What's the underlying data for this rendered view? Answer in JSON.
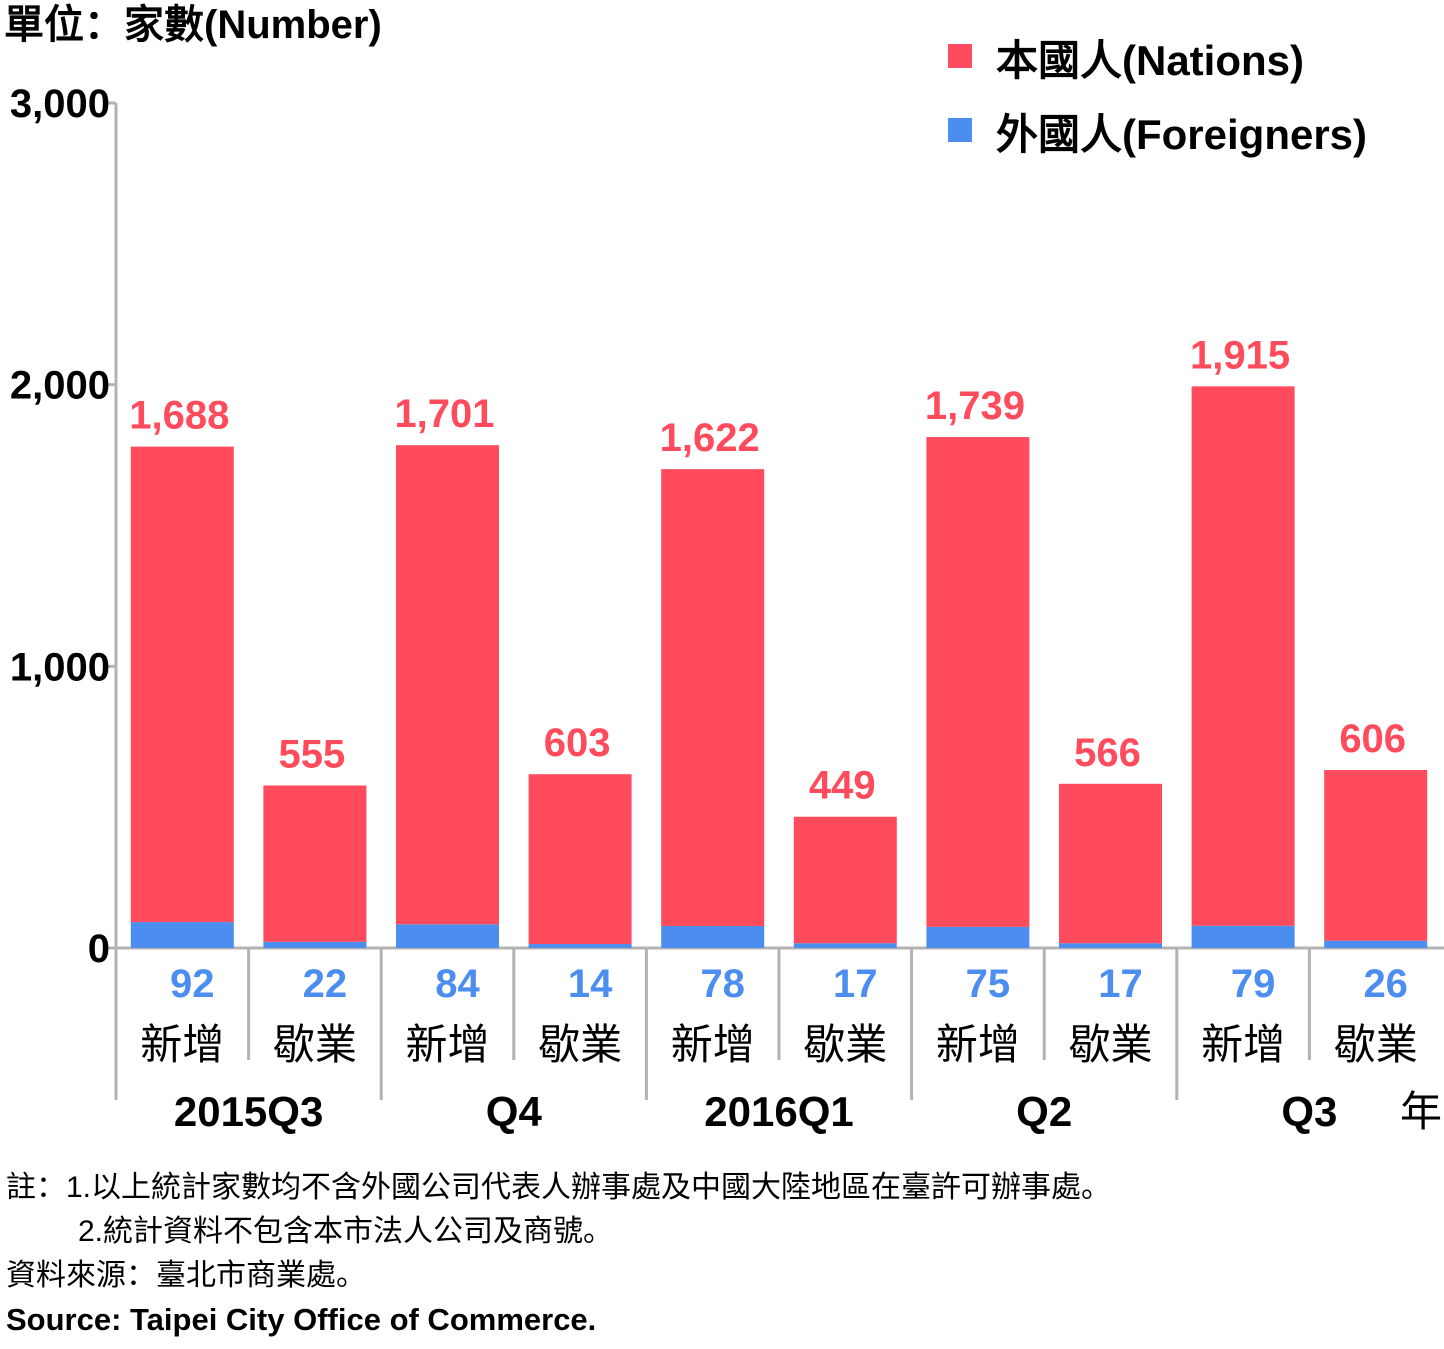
{
  "chart_data": {
    "type": "bar",
    "stacked": true,
    "unit_label": "單位：家數(Number)",
    "yticks": [
      "0",
      "1,000",
      "2,000",
      "3,000"
    ],
    "ylim": [
      0,
      3000
    ],
    "grid": false,
    "legend_position": "top-right",
    "series": [
      {
        "name": "本國人(Nations)",
        "color": "#ff4b5c",
        "values": [
          1688,
          555,
          1701,
          603,
          1622,
          449,
          1739,
          566,
          1915,
          606
        ],
        "labels": [
          "1,688",
          "555",
          "1,701",
          "603",
          "1,622",
          "449",
          "1,739",
          "566",
          "1,915",
          "606"
        ]
      },
      {
        "name": "外國人(Foreigners)",
        "color": "#4c8ef0",
        "values": [
          92,
          22,
          84,
          14,
          78,
          17,
          75,
          17,
          79,
          26
        ],
        "labels": [
          "92",
          "22",
          "84",
          "14",
          "78",
          "17",
          "75",
          "17",
          "79",
          "26"
        ]
      }
    ],
    "categories": [
      "新增",
      "歇業",
      "新增",
      "歇業",
      "新增",
      "歇業",
      "新增",
      "歇業",
      "新增",
      "歇業"
    ],
    "groups": [
      "2015Q3",
      "Q4",
      "2016Q1",
      "Q2",
      "Q3"
    ],
    "group_axis_label": "年"
  },
  "notes": {
    "note1": "註：1.以上統計家數均不含外國公司代表人辦事處及中國大陸地區在臺許可辦事處。",
    "note2": "2.統計資料不包含本市法人公司及商號。",
    "source_zh": "資料來源：臺北市商業處。",
    "source_en": "Source: Taipei City Office of Commerce."
  }
}
